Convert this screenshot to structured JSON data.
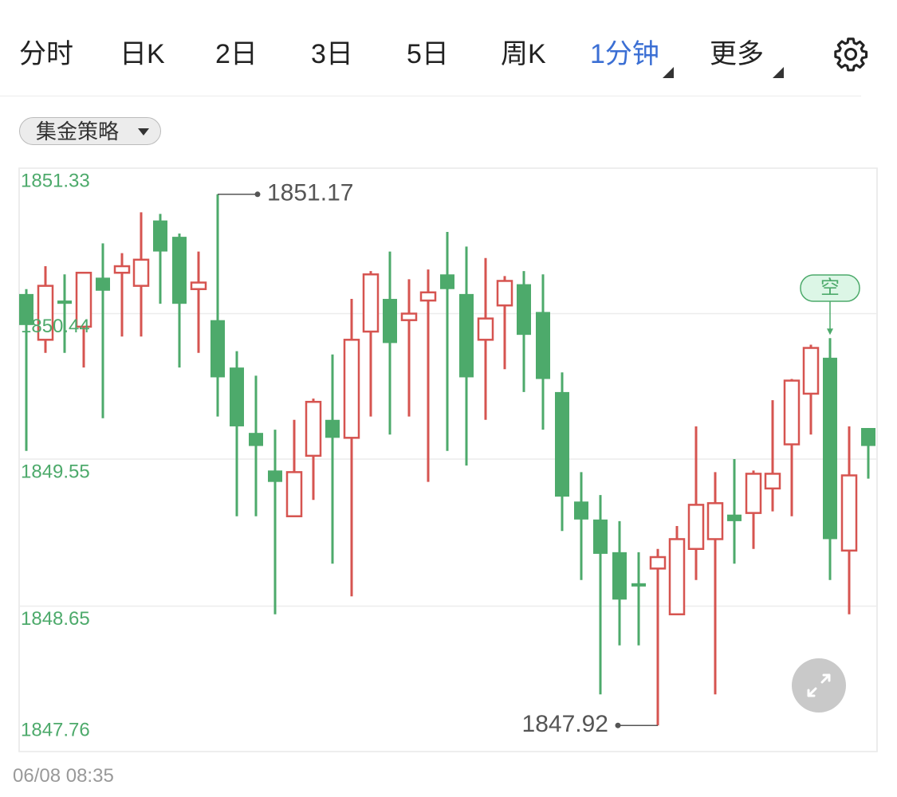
{
  "tabs": [
    "分时",
    "日K",
    "2日",
    "3日",
    "5日",
    "周K",
    "1分钟",
    "更多"
  ],
  "strategy_dropdown": "集金策略",
  "timestamp": "06/08 08:35",
  "chart_data": {
    "type": "candlestick",
    "up_color": "#d65450",
    "down_color": "#4daa6b",
    "ylim": [
      1847.76,
      1851.33
    ],
    "yticks": [
      1851.33,
      1850.44,
      1849.55,
      1848.65,
      1847.76
    ],
    "grid": true,
    "open": [
      1850.56,
      1850.28,
      1850.52,
      1850.36,
      1850.66,
      1850.69,
      1850.61,
      1851.01,
      1850.91,
      1850.59,
      1850.4,
      1850.11,
      1849.71,
      1849.48,
      1849.2,
      1849.57,
      1849.79,
      1849.68,
      1850.33,
      1850.53,
      1850.4,
      1850.52,
      1850.68,
      1850.56,
      1850.28,
      1850.49,
      1850.62,
      1850.45,
      1849.96,
      1849.29,
      1849.18,
      1848.98,
      1848.79,
      1848.88,
      1848.6,
      1849.0,
      1849.06,
      1849.21,
      1849.22,
      1849.37,
      1849.64,
      1849.95,
      1850.17,
      1848.99,
      1849.74
    ],
    "high": [
      1850.59,
      1850.73,
      1850.68,
      1850.69,
      1850.87,
      1850.81,
      1851.06,
      1851.05,
      1850.93,
      1850.82,
      1851.17,
      1850.21,
      1850.06,
      1849.73,
      1849.79,
      1849.92,
      1850.19,
      1850.53,
      1850.7,
      1850.82,
      1850.65,
      1850.71,
      1850.94,
      1850.85,
      1850.78,
      1850.67,
      1850.7,
      1850.68,
      1850.08,
      1849.47,
      1849.33,
      1849.17,
      1848.98,
      1849.0,
      1849.14,
      1849.75,
      1849.47,
      1849.55,
      1849.48,
      1849.91,
      1850.04,
      1850.25,
      1850.29,
      1849.75,
      1849.74
    ],
    "low": [
      1849.6,
      1850.2,
      1850.2,
      1850.11,
      1849.8,
      1850.3,
      1850.3,
      1850.5,
      1850.11,
      1850.2,
      1849.81,
      1849.2,
      1849.2,
      1848.6,
      1849.2,
      1849.3,
      1848.91,
      1848.71,
      1849.81,
      1849.7,
      1849.81,
      1849.41,
      1849.6,
      1849.51,
      1849.79,
      1850.1,
      1849.96,
      1849.73,
      1849.11,
      1848.81,
      1848.11,
      1848.41,
      1848.41,
      1847.92,
      1848.6,
      1848.81,
      1848.11,
      1848.91,
      1849.0,
      1849.23,
      1849.2,
      1849.7,
      1848.81,
      1848.6,
      1849.43
    ],
    "close": [
      1850.37,
      1850.61,
      1850.5,
      1850.69,
      1850.58,
      1850.73,
      1850.77,
      1850.82,
      1850.5,
      1850.63,
      1850.05,
      1849.75,
      1849.63,
      1849.41,
      1849.47,
      1849.9,
      1849.68,
      1850.28,
      1850.68,
      1850.26,
      1850.44,
      1850.57,
      1850.59,
      1850.05,
      1850.41,
      1850.64,
      1850.31,
      1850.04,
      1849.32,
      1849.18,
      1848.97,
      1848.69,
      1848.77,
      1848.95,
      1849.06,
      1849.27,
      1849.28,
      1849.17,
      1849.46,
      1849.46,
      1850.03,
      1850.23,
      1849.06,
      1849.45,
      1849.63
    ],
    "signals": [
      null,
      null,
      null,
      null,
      null,
      null,
      null,
      null,
      null,
      null,
      null,
      null,
      null,
      null,
      null,
      null,
      null,
      null,
      null,
      null,
      null,
      null,
      null,
      null,
      null,
      null,
      null,
      null,
      null,
      null,
      null,
      null,
      null,
      null,
      null,
      null,
      null,
      null,
      null,
      null,
      null,
      null,
      "空",
      null,
      null
    ]
  }
}
